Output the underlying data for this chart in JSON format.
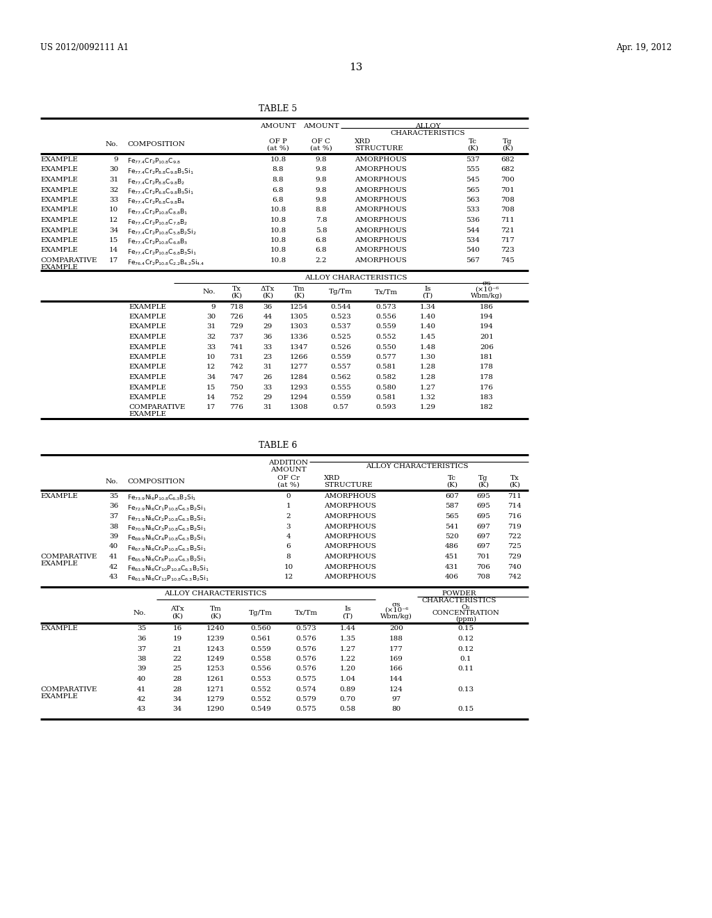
{
  "page_header_left": "US 2012/0092111 A1",
  "page_header_right": "Apr. 19, 2012",
  "page_number": "13",
  "table5_title": "TABLE 5",
  "table6_title": "TABLE 6",
  "table5_top_rows": [
    [
      "EXAMPLE",
      "9",
      "Fe$_{77.4}$Cr$_2$P$_{10.8}$C$_{9.8}$",
      "10.8",
      "9.8",
      "AMORPHOUS",
      "537",
      "682"
    ],
    [
      "EXAMPLE",
      "30",
      "Fe$_{77.4}$Cr$_2$P$_{8.8}$C$_{9.8}$B$_1$Si$_1$",
      "8.8",
      "9.8",
      "AMORPHOUS",
      "555",
      "682"
    ],
    [
      "EXAMPLE",
      "31",
      "Fe$_{77.4}$Cr$_2$P$_{8.8}$C$_{9.8}$B$_2$",
      "8.8",
      "9.8",
      "AMORPHOUS",
      "545",
      "700"
    ],
    [
      "EXAMPLE",
      "32",
      "Fe$_{77.4}$Cr$_2$P$_{6.8}$C$_{9.8}$B$_3$Si$_1$",
      "6.8",
      "9.8",
      "AMORPHOUS",
      "565",
      "701"
    ],
    [
      "EXAMPLE",
      "33",
      "Fe$_{77.4}$Cr$_2$P$_{6.8}$C$_{9.8}$B$_4$",
      "6.8",
      "9.8",
      "AMORPHOUS",
      "563",
      "708"
    ],
    [
      "EXAMPLE",
      "10",
      "Fe$_{77.4}$Cr$_2$P$_{10.8}$C$_{8.8}$B$_1$",
      "10.8",
      "8.8",
      "AMORPHOUS",
      "533",
      "708"
    ],
    [
      "EXAMPLE",
      "12",
      "Fe$_{77.4}$Cr$_2$P$_{10.8}$C$_{7.8}$B$_2$",
      "10.8",
      "7.8",
      "AMORPHOUS",
      "536",
      "711"
    ],
    [
      "EXAMPLE",
      "34",
      "Fe$_{77.4}$Cr$_2$P$_{10.8}$C$_{5.8}$B$_2$Si$_2$",
      "10.8",
      "5.8",
      "AMORPHOUS",
      "544",
      "721"
    ],
    [
      "EXAMPLE",
      "15",
      "Fe$_{77.4}$Cr$_2$P$_{10.8}$C$_{6.8}$B$_3$",
      "10.8",
      "6.8",
      "AMORPHOUS",
      "534",
      "717"
    ],
    [
      "EXAMPLE",
      "14",
      "Fe$_{77.4}$Cr$_2$P$_{10.8}$C$_{6.8}$B$_3$Si$_1$",
      "10.8",
      "6.8",
      "AMORPHOUS",
      "540",
      "723"
    ],
    [
      "COMPARATIVE\nEXAMPLE",
      "17",
      "Fe$_{76.4}$Cr$_2$P$_{10.8}$C$_{2.2}$B$_{4.2}$Si$_{4.4}$",
      "10.8",
      "2.2",
      "AMORPHOUS",
      "567",
      "745"
    ]
  ],
  "table5_bot_rows": [
    [
      "EXAMPLE",
      "9",
      "718",
      "36",
      "1254",
      "0.544",
      "0.573",
      "1.34",
      "186"
    ],
    [
      "EXAMPLE",
      "30",
      "726",
      "44",
      "1305",
      "0.523",
      "0.556",
      "1.40",
      "194"
    ],
    [
      "EXAMPLE",
      "31",
      "729",
      "29",
      "1303",
      "0.537",
      "0.559",
      "1.40",
      "194"
    ],
    [
      "EXAMPLE",
      "32",
      "737",
      "36",
      "1336",
      "0.525",
      "0.552",
      "1.45",
      "201"
    ],
    [
      "EXAMPLE",
      "33",
      "741",
      "33",
      "1347",
      "0.526",
      "0.550",
      "1.48",
      "206"
    ],
    [
      "EXAMPLE",
      "10",
      "731",
      "23",
      "1266",
      "0.559",
      "0.577",
      "1.30",
      "181"
    ],
    [
      "EXAMPLE",
      "12",
      "742",
      "31",
      "1277",
      "0.557",
      "0.581",
      "1.28",
      "178"
    ],
    [
      "EXAMPLE",
      "34",
      "747",
      "26",
      "1284",
      "0.562",
      "0.582",
      "1.28",
      "178"
    ],
    [
      "EXAMPLE",
      "15",
      "750",
      "33",
      "1293",
      "0.555",
      "0.580",
      "1.27",
      "176"
    ],
    [
      "EXAMPLE",
      "14",
      "752",
      "29",
      "1294",
      "0.559",
      "0.581",
      "1.32",
      "183"
    ],
    [
      "COMPARATIVE\nEXAMPLE",
      "17",
      "776",
      "31",
      "1308",
      "0.57",
      "0.593",
      "1.29",
      "182"
    ]
  ],
  "table6_top_rows": [
    [
      "EXAMPLE",
      "35",
      "Fe$_{73.9}$Ni$_6$P$_{10.8}$C$_{6.3}$B$_2$Si$_1$",
      "0",
      "AMORPHOUS",
      "607",
      "695",
      "711"
    ],
    [
      "",
      "36",
      "Fe$_{72.9}$Ni$_6$Cr$_1$P$_{10.8}$C$_{6.3}$B$_2$Si$_1$",
      "1",
      "AMORPHOUS",
      "587",
      "695",
      "714"
    ],
    [
      "",
      "37",
      "Fe$_{71.9}$Ni$_6$Cr$_2$P$_{10.8}$C$_{6.3}$B$_2$Si$_1$",
      "2",
      "AMORPHOUS",
      "565",
      "695",
      "716"
    ],
    [
      "",
      "38",
      "Fe$_{70.9}$Ni$_6$Cr$_3$P$_{10.8}$C$_{6.3}$B$_2$Si$_1$",
      "3",
      "AMORPHOUS",
      "541",
      "697",
      "719"
    ],
    [
      "",
      "39",
      "Fe$_{69.9}$Ni$_6$Cr$_4$P$_{10.8}$C$_{6.3}$B$_2$Si$_1$",
      "4",
      "AMORPHOUS",
      "520",
      "697",
      "722"
    ],
    [
      "",
      "40",
      "Fe$_{67.9}$Ni$_6$Cr$_6$P$_{10.8}$C$_{6.3}$B$_2$Si$_1$",
      "6",
      "AMORPHOUS",
      "486",
      "697",
      "725"
    ],
    [
      "COMPARATIVE\nEXAMPLE",
      "41",
      "Fe$_{65.9}$Ni$_6$Cr$_8$P$_{10.8}$C$_{6.3}$B$_2$Si$_1$",
      "8",
      "AMORPHOUS",
      "451",
      "701",
      "729"
    ],
    [
      "",
      "42",
      "Fe$_{63.9}$Ni$_6$Cr$_{10}$P$_{10.8}$C$_{6.3}$B$_2$Si$_1$",
      "10",
      "AMORPHOUS",
      "431",
      "706",
      "740"
    ],
    [
      "",
      "43",
      "Fe$_{61.9}$Ni$_6$Cr$_{12}$P$_{10.8}$C$_{6.3}$B$_2$Si$_1$",
      "12",
      "AMORPHOUS",
      "406",
      "708",
      "742"
    ]
  ],
  "table6_bot_rows": [
    [
      "EXAMPLE",
      "35",
      "16",
      "1240",
      "0.560",
      "0.573",
      "1.44",
      "200",
      "0.15"
    ],
    [
      "",
      "36",
      "19",
      "1239",
      "0.561",
      "0.576",
      "1.35",
      "188",
      "0.12"
    ],
    [
      "",
      "37",
      "21",
      "1243",
      "0.559",
      "0.576",
      "1.27",
      "177",
      "0.12"
    ],
    [
      "",
      "38",
      "22",
      "1249",
      "0.558",
      "0.576",
      "1.22",
      "169",
      "0.1"
    ],
    [
      "",
      "39",
      "25",
      "1253",
      "0.556",
      "0.576",
      "1.20",
      "166",
      "0.11"
    ],
    [
      "",
      "40",
      "28",
      "1261",
      "0.553",
      "0.575",
      "1.04",
      "144",
      ""
    ],
    [
      "COMPARATIVE\nEXAMPLE",
      "41",
      "28",
      "1271",
      "0.552",
      "0.574",
      "0.89",
      "124",
      "0.13"
    ],
    [
      "",
      "42",
      "34",
      "1279",
      "0.552",
      "0.579",
      "0.70",
      "97",
      ""
    ],
    [
      "",
      "43",
      "34",
      "1290",
      "0.549",
      "0.575",
      "0.58",
      "80",
      "0.15"
    ]
  ]
}
